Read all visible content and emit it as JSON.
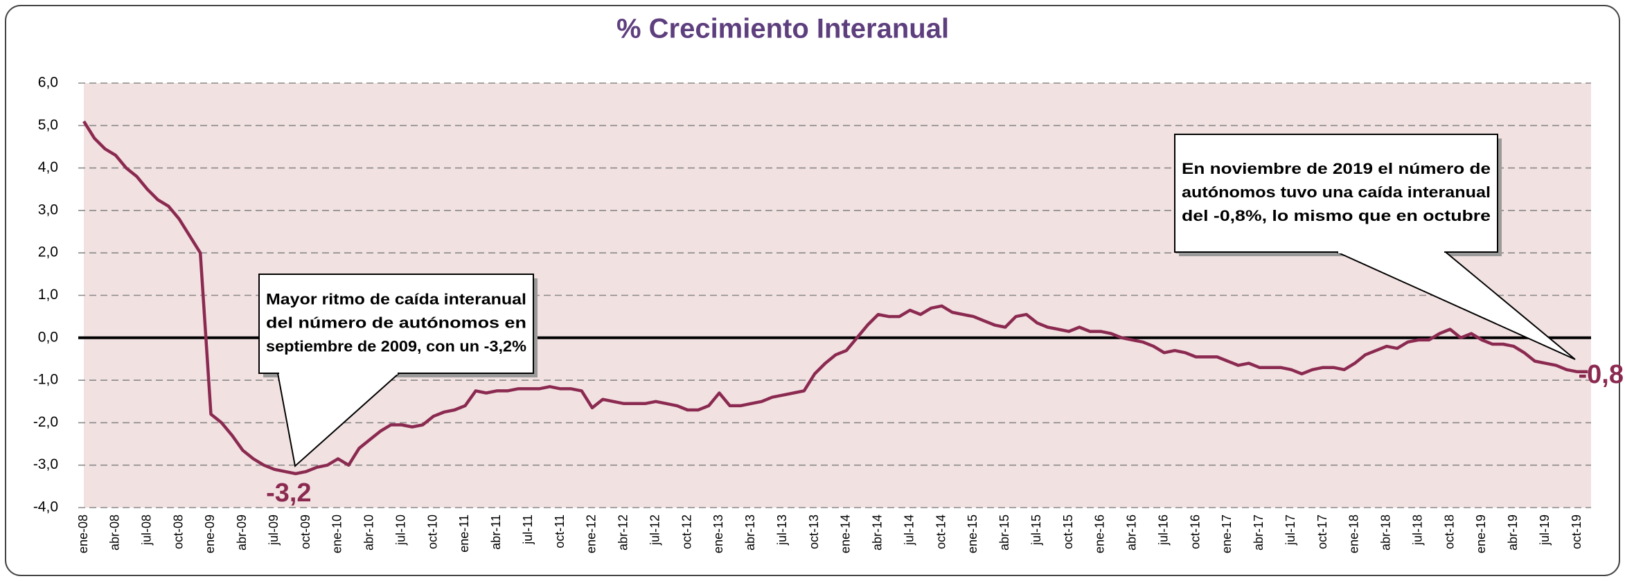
{
  "chart_data": {
    "type": "line",
    "title": "% Crecimiento Interanual",
    "categories": [
      "ene-08",
      null,
      null,
      "abr-08",
      null,
      null,
      "jul-08",
      null,
      null,
      "oct-08",
      null,
      null,
      "ene-09",
      null,
      null,
      "abr-09",
      null,
      null,
      "jul-09",
      null,
      null,
      "oct-09",
      null,
      null,
      "ene-10",
      null,
      null,
      "abr-10",
      null,
      null,
      "jul-10",
      null,
      null,
      "oct-10",
      null,
      null,
      "ene-11",
      null,
      null,
      "abr-11",
      null,
      null,
      "jul-11",
      null,
      null,
      "oct-11",
      null,
      null,
      "ene-12",
      null,
      null,
      "abr-12",
      null,
      null,
      "jul-12",
      null,
      null,
      "oct-12",
      null,
      null,
      "ene-13",
      null,
      null,
      "abr-13",
      null,
      null,
      "jul-13",
      null,
      null,
      "oct-13",
      null,
      null,
      "ene-14",
      null,
      null,
      "abr-14",
      null,
      null,
      "jul-14",
      null,
      null,
      "oct-14",
      null,
      null,
      "ene-15",
      null,
      null,
      "abr-15",
      null,
      null,
      "jul-15",
      null,
      null,
      "oct-15",
      null,
      null,
      "ene-16",
      null,
      null,
      "abr-16",
      null,
      null,
      "jul-16",
      null,
      null,
      "oct-16",
      null,
      null,
      "ene-17",
      null,
      null,
      "abr-17",
      null,
      null,
      "jul-17",
      null,
      null,
      "oct-17",
      null,
      null,
      "ene-18",
      null,
      null,
      "abr-18",
      null,
      null,
      "jul-18",
      null,
      null,
      "oct-18",
      null,
      null,
      "ene-19",
      null,
      null,
      "abr-19",
      null,
      null,
      "jul-19",
      null,
      null,
      "oct-19",
      null
    ],
    "series": [
      {
        "color": "#8b2a50",
        "values": [
          5.1,
          4.7,
          4.45,
          4.3,
          4.0,
          3.8,
          3.5,
          3.25,
          3.1,
          2.8,
          2.4,
          2.0,
          -1.8,
          -2.0,
          -2.3,
          -2.65,
          -2.85,
          -3.0,
          -3.1,
          -3.15,
          -3.2,
          -3.15,
          -3.05,
          -3.0,
          -2.85,
          -3.0,
          -2.6,
          -2.4,
          -2.2,
          -2.05,
          -2.05,
          -2.1,
          -2.05,
          -1.85,
          -1.75,
          -1.7,
          -1.6,
          -1.25,
          -1.3,
          -1.25,
          -1.25,
          -1.2,
          -1.2,
          -1.2,
          -1.15,
          -1.2,
          -1.2,
          -1.25,
          -1.65,
          -1.45,
          -1.5,
          -1.55,
          -1.55,
          -1.55,
          -1.5,
          -1.55,
          -1.6,
          -1.7,
          -1.7,
          -1.6,
          -1.3,
          -1.6,
          -1.6,
          -1.55,
          -1.5,
          -1.4,
          -1.35,
          -1.3,
          -1.25,
          -0.85,
          -0.6,
          -0.4,
          -0.3,
          0.0,
          0.3,
          0.55,
          0.5,
          0.5,
          0.65,
          0.55,
          0.7,
          0.75,
          0.6,
          0.55,
          0.5,
          0.4,
          0.3,
          0.25,
          0.5,
          0.55,
          0.35,
          0.25,
          0.2,
          0.15,
          0.25,
          0.15,
          0.15,
          0.1,
          0.0,
          -0.05,
          -0.1,
          -0.2,
          -0.35,
          -0.3,
          -0.35,
          -0.45,
          -0.45,
          -0.45,
          -0.55,
          -0.65,
          -0.6,
          -0.7,
          -0.7,
          -0.7,
          -0.75,
          -0.85,
          -0.75,
          -0.7,
          -0.7,
          -0.75,
          -0.6,
          -0.4,
          -0.3,
          -0.2,
          -0.25,
          -0.1,
          -0.05,
          -0.05,
          0.1,
          0.2,
          0.0,
          0.1,
          -0.05,
          -0.15,
          -0.15,
          -0.2,
          -0.35,
          -0.55,
          -0.6,
          -0.65,
          -0.75,
          -0.8,
          -0.8
        ],
        "value_labels": [
          null,
          null,
          null,
          null,
          null,
          null,
          null,
          null,
          null,
          null,
          null,
          null,
          null,
          null,
          null,
          null,
          null,
          null,
          null,
          null,
          "-3,2",
          null,
          null,
          null,
          null,
          null,
          null,
          null,
          null,
          null,
          null,
          null,
          null,
          null,
          null,
          null,
          null,
          null,
          null,
          null,
          null,
          null,
          null,
          null,
          null,
          null,
          null,
          null,
          null,
          null,
          null,
          null,
          null,
          null,
          null,
          null,
          null,
          null,
          null,
          null,
          null,
          null,
          null,
          null,
          null,
          null,
          null,
          null,
          null,
          null,
          null,
          null,
          null,
          null,
          null,
          null,
          null,
          null,
          null,
          null,
          null,
          null,
          null,
          null,
          null,
          null,
          null,
          null,
          null,
          null,
          null,
          null,
          null,
          null,
          null,
          null,
          null,
          null,
          null,
          null,
          null,
          null,
          null,
          null,
          null,
          null,
          null,
          null,
          null,
          null,
          null,
          null,
          null,
          null,
          null,
          null,
          null,
          null,
          null,
          null,
          null,
          null,
          null,
          null,
          null,
          null,
          null,
          null,
          null,
          null,
          null,
          null,
          null,
          null,
          null,
          null,
          null,
          null,
          null,
          null,
          null,
          null,
          "-0,8"
        ]
      }
    ],
    "ylim": [
      -4,
      6
    ],
    "yticks": [
      {
        "value": -4,
        "label": "-4,0"
      },
      {
        "value": -3,
        "label": "-3,0"
      },
      {
        "value": -2,
        "label": "-2,0"
      },
      {
        "value": -1,
        "label": "-1,0"
      },
      {
        "value": 0,
        "label": "0,0"
      },
      {
        "value": 1,
        "label": "1,0"
      },
      {
        "value": 2,
        "label": "2,0"
      },
      {
        "value": 3,
        "label": "3,0"
      },
      {
        "value": 4,
        "label": "4,0"
      },
      {
        "value": 5,
        "label": "5,0"
      },
      {
        "value": 6,
        "label": "6,0"
      }
    ],
    "grid": true,
    "annotations": [
      {
        "text": [
          "Mayor ritmo de caída interanual",
          "del número de autónomos en",
          "septiembre de 2009, con un -3,2%"
        ]
      },
      {
        "text": [
          "En noviembre de 2019 el número de",
          "autónomos tuvo una caída interanual",
          "del -0,8%, lo mismo que en octubre"
        ]
      }
    ]
  }
}
